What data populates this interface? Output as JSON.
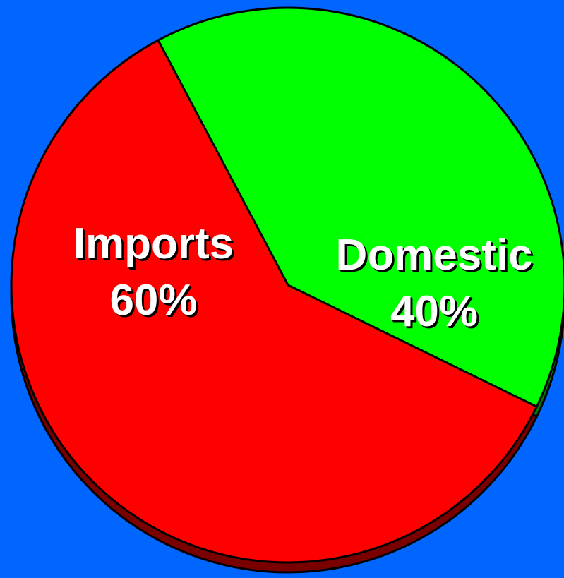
{
  "colors": {
    "background": "#0066ff",
    "outline": "#000000",
    "label_text": "#ffffff"
  },
  "chart_data": {
    "type": "pie",
    "title": "",
    "series": [
      {
        "label": "Imports",
        "percent_label": "60%",
        "value": 60,
        "color": "#ff0000",
        "side_color": "#7a0000"
      },
      {
        "label": "Domestic",
        "percent_label": "40%",
        "value": 40,
        "color": "#00ff00",
        "side_color": "#007a00"
      }
    ]
  }
}
